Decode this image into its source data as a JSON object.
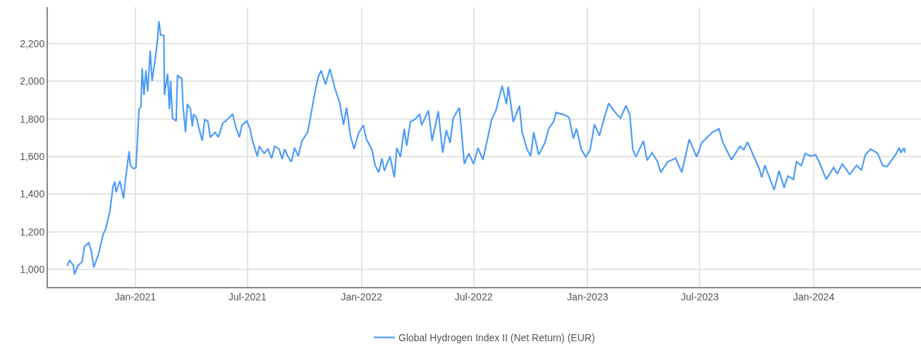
{
  "chart_data": {
    "type": "line",
    "x": [
      "2020-09-13",
      "2020-09-17",
      "2020-09-23",
      "2020-09-25",
      "2020-09-30",
      "2020-10-07",
      "2020-10-11",
      "2020-10-18",
      "2020-10-22",
      "2020-10-26",
      "2020-11-03",
      "2020-11-10",
      "2020-11-14",
      "2020-11-21",
      "2020-11-26",
      "2020-11-29",
      "2020-12-01",
      "2020-12-07",
      "2020-12-13",
      "2020-12-16",
      "2020-12-22",
      "2020-12-24",
      "2020-12-29",
      "2021-01-02",
      "2021-01-07",
      "2021-01-10",
      "2021-01-12",
      "2021-01-15",
      "2021-01-18",
      "2021-01-21",
      "2021-01-25",
      "2021-01-28",
      "2021-02-02",
      "2021-02-06",
      "2021-02-08",
      "2021-02-11",
      "2021-02-16",
      "2021-02-17",
      "2021-02-22",
      "2021-02-25",
      "2021-02-27",
      "2021-03-02",
      "2021-03-08",
      "2021-03-10",
      "2021-03-17",
      "2021-03-19",
      "2021-03-23",
      "2021-03-26",
      "2021-03-31",
      "2021-04-03",
      "2021-04-05",
      "2021-04-10",
      "2021-04-13",
      "2021-04-19",
      "2021-04-23",
      "2021-04-28",
      "2021-05-02",
      "2021-05-10",
      "2021-05-15",
      "2021-05-22",
      "2021-05-27",
      "2021-06-07",
      "2021-06-12",
      "2021-06-18",
      "2021-06-22",
      "2021-06-30",
      "2021-07-05",
      "2021-07-09",
      "2021-07-17",
      "2021-07-20",
      "2021-07-28",
      "2021-08-03",
      "2021-08-09",
      "2021-08-14",
      "2021-08-21",
      "2021-08-26",
      "2021-08-30",
      "2021-09-04",
      "2021-09-10",
      "2021-09-15",
      "2021-09-21",
      "2021-09-27",
      "2021-10-06",
      "2021-10-10",
      "2021-10-17",
      "2021-10-23",
      "2021-10-28",
      "2021-11-04",
      "2021-11-11",
      "2021-11-19",
      "2021-11-27",
      "2021-12-03",
      "2021-12-08",
      "2021-12-14",
      "2021-12-20",
      "2021-12-27",
      "2022-01-04",
      "2022-01-09",
      "2022-01-18",
      "2022-01-23",
      "2022-01-29",
      "2022-02-03",
      "2022-02-07",
      "2022-02-16",
      "2022-02-23",
      "2022-02-27",
      "2022-03-05",
      "2022-03-11",
      "2022-03-15",
      "2022-03-21",
      "2022-03-28",
      "2022-04-05",
      "2022-04-08",
      "2022-04-19",
      "2022-04-25",
      "2022-05-05",
      "2022-05-12",
      "2022-05-18",
      "2022-05-24",
      "2022-05-29",
      "2022-06-08",
      "2022-06-16",
      "2022-06-23",
      "2022-07-01",
      "2022-07-08",
      "2022-07-16",
      "2022-07-22",
      "2022-07-30",
      "2022-08-06",
      "2022-08-16",
      "2022-08-23",
      "2022-08-26",
      "2022-09-03",
      "2022-09-13",
      "2022-09-17",
      "2022-09-25",
      "2022-10-01",
      "2022-10-06",
      "2022-10-14",
      "2022-10-24",
      "2022-10-30",
      "2022-11-07",
      "2022-11-11",
      "2022-11-24",
      "2022-12-02",
      "2022-12-09",
      "2022-12-14",
      "2022-12-22",
      "2022-12-29",
      "2023-01-05",
      "2023-01-12",
      "2023-01-20",
      "2023-01-28",
      "2023-02-04",
      "2023-02-12",
      "2023-02-23",
      "2023-03-04",
      "2023-03-10",
      "2023-03-15",
      "2023-03-20",
      "2023-04-01",
      "2023-04-07",
      "2023-04-15",
      "2023-04-24",
      "2023-04-29",
      "2023-05-10",
      "2023-05-23",
      "2023-06-02",
      "2023-06-14",
      "2023-06-26",
      "2023-07-04",
      "2023-07-21",
      "2023-08-01",
      "2023-08-07",
      "2023-08-21",
      "2023-09-04",
      "2023-09-10",
      "2023-09-16",
      "2023-09-25",
      "2023-10-05",
      "2023-10-09",
      "2023-10-14",
      "2023-10-29",
      "2023-11-06",
      "2023-11-14",
      "2023-11-20",
      "2023-11-29",
      "2023-12-04",
      "2023-12-12",
      "2023-12-18",
      "2023-12-27",
      "2024-01-04",
      "2024-01-11",
      "2024-01-21",
      "2024-02-02",
      "2024-02-08",
      "2024-02-16",
      "2024-02-28",
      "2024-03-10",
      "2024-03-18",
      "2024-03-24",
      "2024-04-02",
      "2024-04-13",
      "2024-04-21",
      "2024-04-28",
      "2024-05-12",
      "2024-05-18",
      "2024-05-21",
      "2024-05-26",
      "2024-05-27"
    ],
    "series": [
      {
        "name": "Global Hydrogen Index II (Net Return) (EUR)",
        "color": "#4e9cf7",
        "values": [
          1019,
          1049,
          1022,
          974,
          1019,
          1041,
          1123,
          1142,
          1097,
          1011,
          1086,
          1187,
          1213,
          1310,
          1441,
          1467,
          1411,
          1471,
          1378,
          1475,
          1628,
          1553,
          1535,
          1542,
          1853,
          1864,
          2070,
          1927,
          2058,
          1946,
          2163,
          2002,
          2114,
          2227,
          2320,
          2245,
          2245,
          1927,
          2040,
          1853,
          2002,
          1804,
          1789,
          2032,
          2014,
          1871,
          1729,
          1879,
          1853,
          1759,
          1826,
          1804,
          1759,
          1684,
          1797,
          1789,
          1703,
          1729,
          1703,
          1778,
          1789,
          1826,
          1759,
          1703,
          1767,
          1789,
          1748,
          1684,
          1602,
          1655,
          1617,
          1640,
          1591,
          1655,
          1640,
          1587,
          1640,
          1602,
          1572,
          1647,
          1602,
          1684,
          1729,
          1797,
          1927,
          2021,
          2058,
          1984,
          2066,
          1965,
          1883,
          1770,
          1860,
          1714,
          1640,
          1722,
          1767,
          1692,
          1636,
          1553,
          1516,
          1591,
          1524,
          1602,
          1490,
          1647,
          1598,
          1748,
          1658,
          1785,
          1797,
          1826,
          1767,
          1845,
          1684,
          1841,
          1621,
          1741,
          1673,
          1804,
          1860,
          1561,
          1617,
          1561,
          1647,
          1583,
          1673,
          1797,
          1845,
          1976,
          1879,
          1972,
          1785,
          1871,
          1733,
          1640,
          1602,
          1729,
          1610,
          1673,
          1748,
          1785,
          1834,
          1823,
          1808,
          1696,
          1748,
          1636,
          1598,
          1636,
          1771,
          1711,
          1808,
          1883,
          1845,
          1804,
          1871,
          1823,
          1636,
          1598,
          1684,
          1580,
          1621,
          1572,
          1516,
          1572,
          1591,
          1516,
          1692,
          1598,
          1673,
          1729,
          1748,
          1677,
          1583,
          1655,
          1636,
          1677,
          1610,
          1535,
          1490,
          1553,
          1423,
          1524,
          1434,
          1497,
          1479,
          1572,
          1553,
          1617,
          1602,
          1610,
          1561,
          1479,
          1542,
          1509,
          1561,
          1505,
          1553,
          1527,
          1610,
          1640,
          1617,
          1553,
          1546,
          1610,
          1647,
          1621,
          1647,
          1621
        ]
      }
    ],
    "xlim": [
      "2020-08-13",
      "2024-06-22"
    ],
    "xticks": [
      {
        "value": "2021-01-01",
        "label": "Jan-2021"
      },
      {
        "value": "2021-07-01",
        "label": "Jul-2021"
      },
      {
        "value": "2022-01-01",
        "label": "Jan-2022"
      },
      {
        "value": "2022-07-01",
        "label": "Jul-2022"
      },
      {
        "value": "2023-01-01",
        "label": "Jan-2023"
      },
      {
        "value": "2023-07-01",
        "label": "Jul-2023"
      },
      {
        "value": "2024-01-01",
        "label": "Jan-2024"
      }
    ],
    "ylim": [
      907,
      2395
    ],
    "yticks": [
      {
        "value": 1000,
        "label": "1,000"
      },
      {
        "value": 1200,
        "label": "1,200"
      },
      {
        "value": 1400,
        "label": "1,400"
      },
      {
        "value": 1600,
        "label": "1,600"
      },
      {
        "value": 1800,
        "label": "1,800"
      },
      {
        "value": 2000,
        "label": "2,000"
      },
      {
        "value": 2200,
        "label": "2,200"
      }
    ],
    "grid": true,
    "legend": "bottom",
    "marker": "none",
    "line_style": "solid"
  }
}
